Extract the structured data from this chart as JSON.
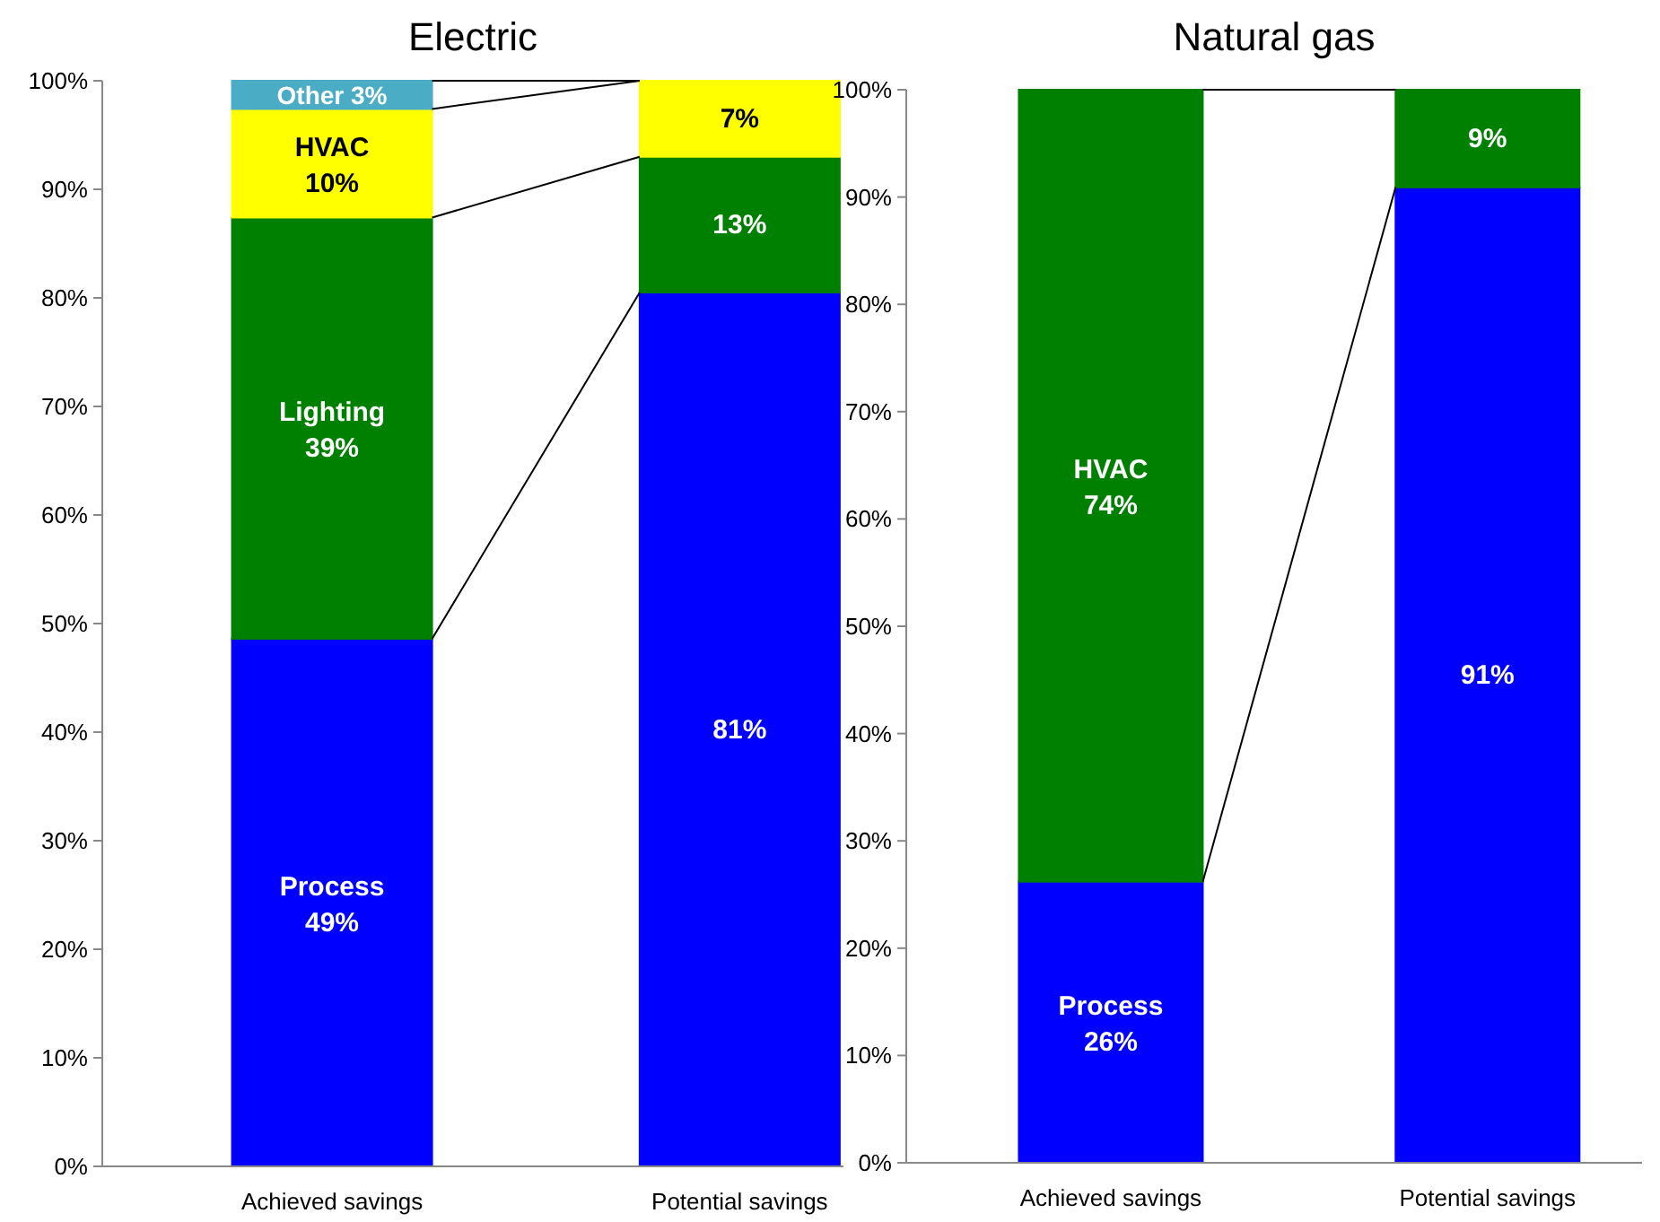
{
  "chart_data": [
    {
      "type": "bar",
      "title": "Electric",
      "stacked": true,
      "categories": [
        "Achieved savings",
        "Potential savings"
      ],
      "ylim": [
        0,
        100
      ],
      "yticks": [
        {
          "value": 0,
          "label": "0%"
        },
        {
          "value": 10,
          "label": "10%"
        },
        {
          "value": 20,
          "label": "20%"
        },
        {
          "value": 30,
          "label": "30%"
        },
        {
          "value": 40,
          "label": "40%"
        },
        {
          "value": 50,
          "label": "50%"
        },
        {
          "value": 60,
          "label": "60%"
        },
        {
          "value": 70,
          "label": "70%"
        },
        {
          "value": 80,
          "label": "80%"
        },
        {
          "value": 90,
          "label": "90%"
        },
        {
          "value": 100,
          "label": "100%"
        }
      ],
      "series": [
        {
          "name": "Process",
          "color": "#0000ff",
          "values": [
            48.6,
            80.5
          ],
          "value_labels": [
            "49%",
            "81%"
          ]
        },
        {
          "name": "Lighting",
          "color": "#008000",
          "values": [
            38.8,
            12.5
          ],
          "value_labels": [
            "39%",
            "13%"
          ]
        },
        {
          "name": "HVAC",
          "color": "#ffff00",
          "values": [
            10.0,
            7.0
          ],
          "value_labels": [
            "10%",
            "7%"
          ]
        },
        {
          "name": "Other",
          "color": "#4bacc6",
          "values": [
            2.6,
            0
          ],
          "value_labels": [
            "3%",
            null
          ]
        }
      ]
    },
    {
      "type": "bar",
      "title": "Natural gas",
      "stacked": true,
      "categories": [
        "Achieved savings",
        "Potential savings"
      ],
      "ylim": [
        0,
        100
      ],
      "yticks": [
        {
          "value": 0,
          "label": "0%"
        },
        {
          "value": 10,
          "label": "10%"
        },
        {
          "value": 20,
          "label": "20%"
        },
        {
          "value": 30,
          "label": "30%"
        },
        {
          "value": 40,
          "label": "40%"
        },
        {
          "value": 50,
          "label": "50%"
        },
        {
          "value": 60,
          "label": "60%"
        },
        {
          "value": 70,
          "label": "70%"
        },
        {
          "value": 80,
          "label": "80%"
        },
        {
          "value": 90,
          "label": "90%"
        },
        {
          "value": 100,
          "label": "100%"
        }
      ],
      "series": [
        {
          "name": "Process",
          "color": "#0000ff",
          "values": [
            26.2,
            90.9
          ],
          "value_labels": [
            "26%",
            "91%"
          ]
        },
        {
          "name": "HVAC",
          "color": "#008000",
          "values": [
            73.8,
            9.1
          ],
          "value_labels": [
            "74%",
            "9%"
          ]
        }
      ]
    }
  ]
}
